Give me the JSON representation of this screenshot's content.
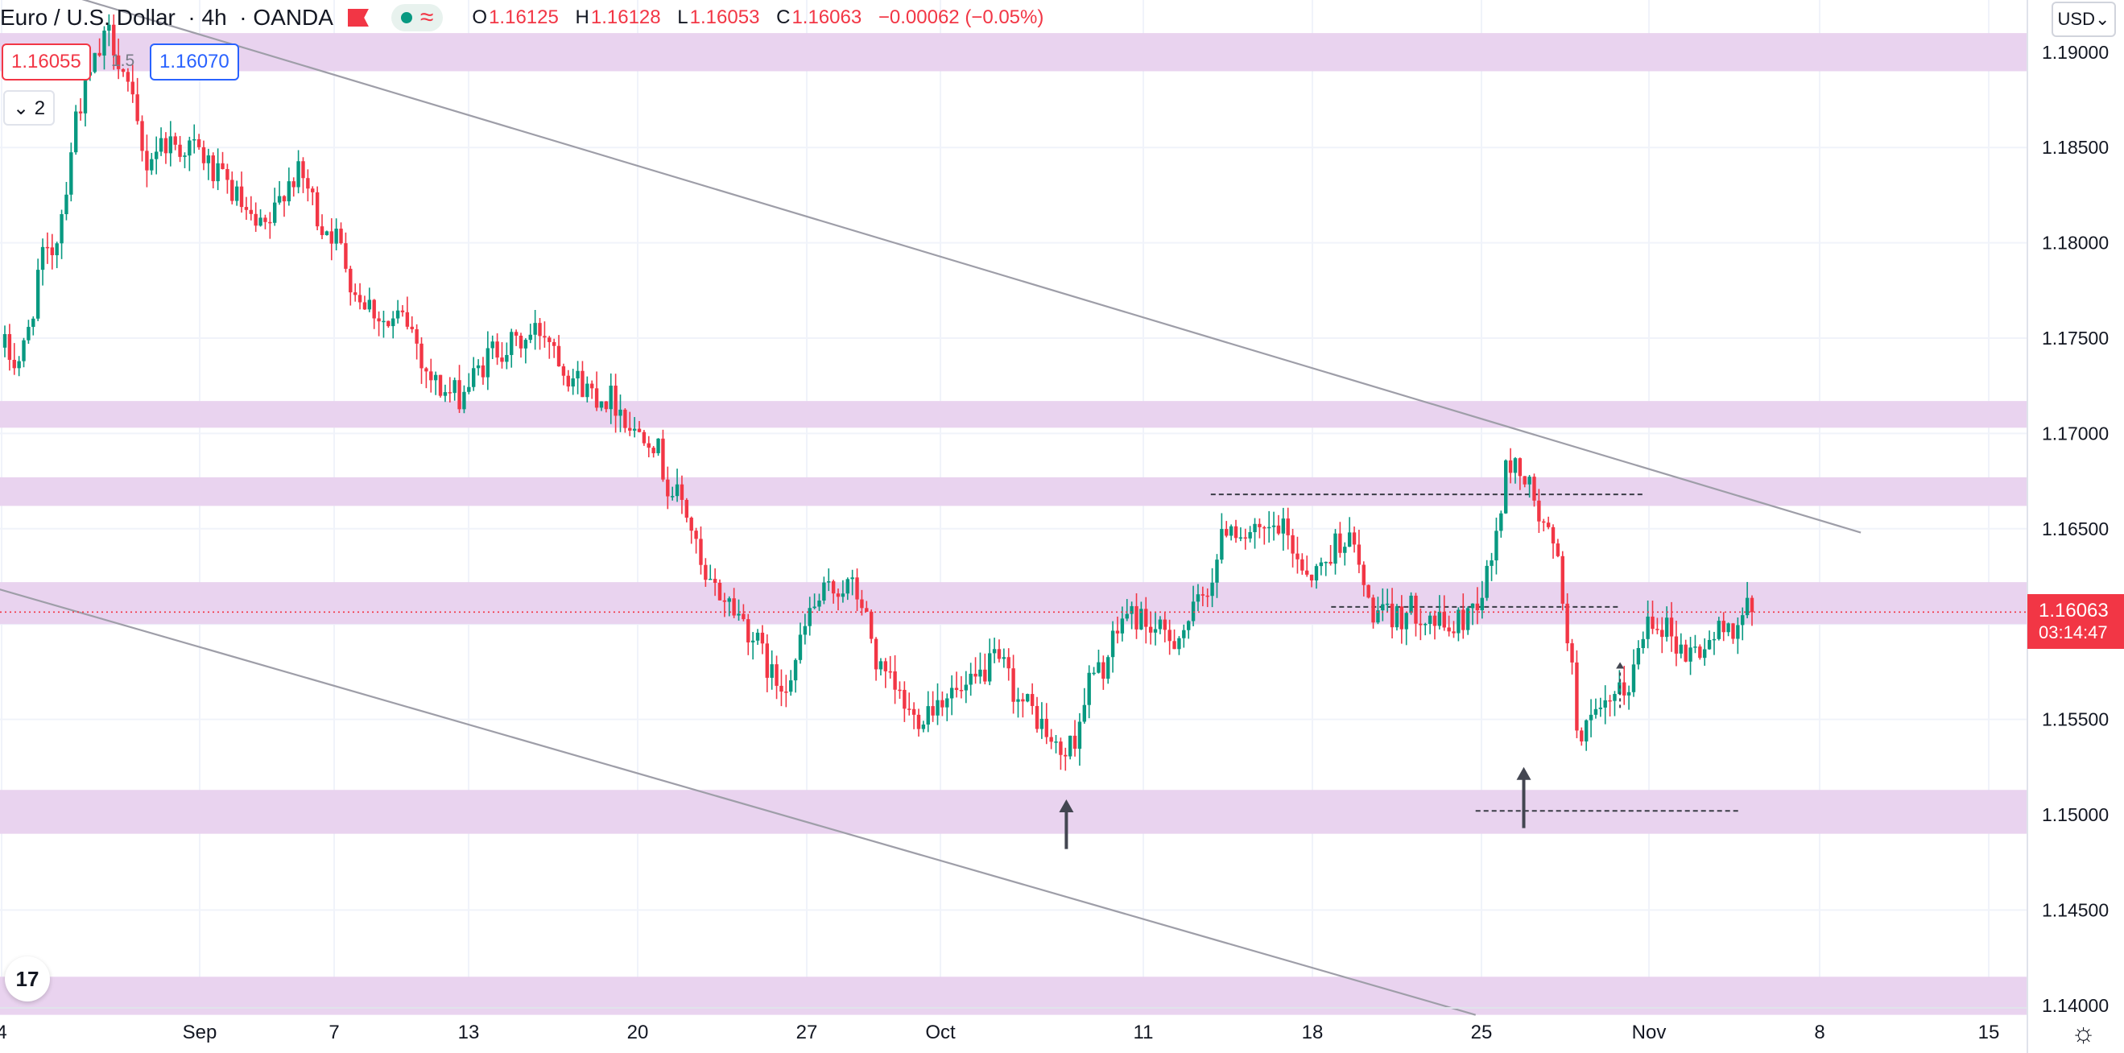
{
  "header": {
    "symbol": "Euro / U.S. Dollar",
    "interval": "4h",
    "source": "OANDA",
    "open_label": "O",
    "open": "1.16125",
    "high_label": "H",
    "high": "1.16128",
    "low_label": "L",
    "low": "1.16053",
    "close_label": "C",
    "close": "1.16063",
    "change": "−0.00062 (−0.05%)",
    "wave_glyph": "≈"
  },
  "trade": {
    "sell_price": "1.16055",
    "spread": "1.5",
    "buy_price": "1.16070"
  },
  "indicators_toggle": "⌄ 2",
  "currency_button": "USD⌄",
  "last_price": {
    "price": "1.16063",
    "countdown": "03:14:47"
  },
  "logo_text": "17",
  "colors": {
    "up": "#089981",
    "down": "#f23645",
    "zone": "#e9d3ef",
    "grid": "#f0f3fa",
    "trendline": "#9e9ea8",
    "text": "#131722"
  },
  "chart_data": {
    "type": "candlestick",
    "title": "Euro / U.S. Dollar",
    "xlabel": "",
    "ylabel": "",
    "ylim": [
      1.1375,
      1.1925
    ],
    "y_ticks": [
      "1.19000",
      "1.18500",
      "1.18000",
      "1.17500",
      "1.17000",
      "1.16500",
      "1.16000",
      "1.15500",
      "1.15000",
      "1.14500",
      "1.14000"
    ],
    "x_ticks": [
      "4",
      "Sep",
      "7",
      "13",
      "20",
      "27",
      "Oct",
      "11",
      "18",
      "25",
      "Nov",
      "8",
      "15"
    ],
    "last_price": 1.16063,
    "grid": true,
    "anchors": [
      [
        1.1745,
        1.1735
      ],
      [
        1.179,
        1.182
      ],
      [
        1.1865,
        1.1895
      ],
      [
        1.191,
        1.1885
      ],
      [
        1.184,
        1.186
      ],
      [
        1.185,
        1.1835
      ],
      [
        1.1835,
        1.1815
      ],
      [
        1.181,
        1.18
      ],
      [
        1.183,
        1.184
      ],
      [
        1.181,
        1.1795
      ],
      [
        1.1775,
        1.1765
      ],
      [
        1.1755,
        1.176
      ],
      [
        1.1735,
        1.1715
      ],
      [
        1.172,
        1.173
      ],
      [
        1.1745,
        1.1735
      ],
      [
        1.175,
        1.174
      ],
      [
        1.1735,
        1.1705
      ],
      [
        1.172,
        1.171
      ],
      [
        1.17,
        1.169
      ],
      [
        1.167,
        1.1645
      ],
      [
        1.162,
        1.16
      ],
      [
        1.1605,
        1.159
      ],
      [
        1.157,
        1.158
      ],
      [
        1.1605,
        1.162
      ],
      [
        1.162,
        1.161
      ],
      [
        1.1575,
        1.1565
      ],
      [
        1.155,
        1.156
      ],
      [
        1.1565,
        1.156
      ],
      [
        1.1575,
        1.158
      ],
      [
        1.156,
        1.1545
      ],
      [
        1.1535,
        1.153
      ],
      [
        1.157,
        1.1585
      ],
      [
        1.1605,
        1.161
      ],
      [
        1.1595,
        1.16
      ],
      [
        1.1605,
        1.162
      ],
      [
        1.1655,
        1.164
      ],
      [
        1.1645,
        1.165
      ],
      [
        1.1635,
        1.162
      ],
      [
        1.164,
        1.1655
      ],
      [
        1.161,
        1.1595
      ],
      [
        1.1605,
        1.161
      ],
      [
        1.16,
        1.1595
      ],
      [
        1.161,
        1.1615
      ],
      [
        1.1685,
        1.167
      ],
      [
        1.165,
        1.164
      ],
      [
        1.1545,
        1.155
      ],
      [
        1.156,
        1.1565
      ],
      [
        1.1605,
        1.1605
      ],
      [
        1.1585,
        1.159
      ],
      [
        1.1595,
        1.16
      ],
      [
        1.161,
        1.1606
      ]
    ],
    "zones": [
      {
        "low": 1.189,
        "high": 1.191
      },
      {
        "low": 1.1703,
        "high": 1.1717
      },
      {
        "low": 1.1662,
        "high": 1.1677
      },
      {
        "low": 1.16,
        "high": 1.1622
      },
      {
        "low": 1.149,
        "high": 1.1513
      },
      {
        "low": 1.1395,
        "high": 1.1415
      }
    ],
    "trendlines": [
      {
        "from": {
          "x": "Sep 1",
          "y": 1.1932
        },
        "to": {
          "x": "Nov 15",
          "y": 1.1648
        }
      },
      {
        "from": {
          "x": "Aug 27",
          "y": 1.1628
        },
        "to": {
          "x": "Oct 30",
          "y": 1.1395
        }
      }
    ],
    "horizontal_levels": [
      {
        "value": 1.1668,
        "from": "Oct 19",
        "to": "Nov 6"
      },
      {
        "value": 1.1609,
        "from": "Oct 24",
        "to": "Nov 5"
      },
      {
        "value": 1.1502,
        "from": "Oct 30",
        "to": "Nov 10"
      }
    ],
    "arrows": [
      {
        "x": "Oct 13",
        "from": 1.1482,
        "to": 1.1508,
        "style": "solid"
      },
      {
        "x": "Nov 1",
        "from": 1.1493,
        "to": 1.1525,
        "style": "solid"
      },
      {
        "x": "Nov 5",
        "from": 1.1556,
        "to": 1.158,
        "style": "dashed"
      }
    ]
  }
}
